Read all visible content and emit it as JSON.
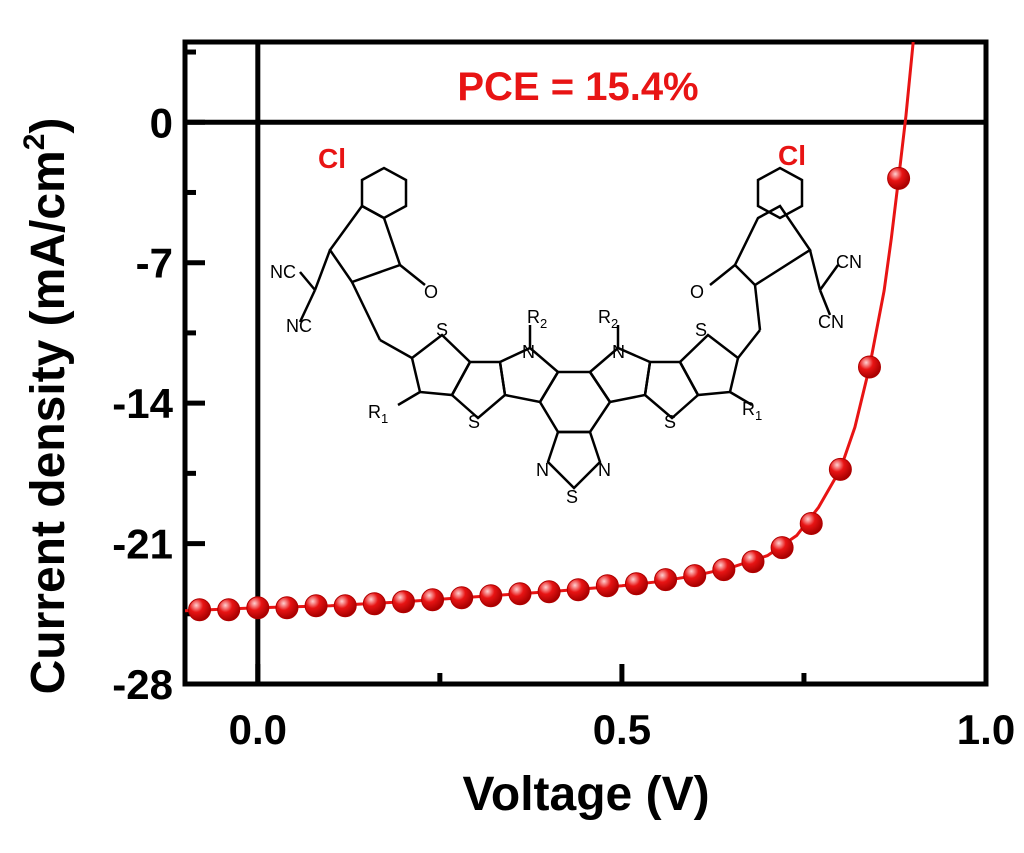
{
  "chart_data": {
    "type": "line",
    "title": "",
    "xlabel": "Voltage (V)",
    "ylabel": "Current density (mA/cm2)",
    "ylabel_main": "Current density (mA/cm",
    "ylabel_sup": "2",
    "ylabel_close": ")",
    "xlim": [
      -0.1,
      1.0
    ],
    "ylim": [
      -28,
      4
    ],
    "xticks": [
      0.0,
      0.5,
      1.0
    ],
    "xtick_labels": [
      "0.0",
      "0.5",
      "1.0"
    ],
    "xminor": [
      0.25,
      0.75
    ],
    "yticks": [
      0,
      -7,
      -14,
      -21,
      -28
    ],
    "ytick_labels": [
      "0",
      "-7",
      "-14",
      "-21",
      "-28"
    ],
    "grid": false,
    "annotation": "PCE = 15.4%",
    "series": [
      {
        "color": "#e81414",
        "x": [
          -0.08,
          -0.04,
          0.0,
          0.04,
          0.08,
          0.12,
          0.16,
          0.2,
          0.24,
          0.28,
          0.32,
          0.36,
          0.4,
          0.44,
          0.48,
          0.52,
          0.56,
          0.6,
          0.64,
          0.68,
          0.72,
          0.76,
          0.8,
          0.84,
          0.88
        ],
        "y": [
          -24.3,
          -24.3,
          -24.2,
          -24.2,
          -24.1,
          -24.1,
          -24.0,
          -23.9,
          -23.8,
          -23.7,
          -23.6,
          -23.5,
          -23.4,
          -23.3,
          -23.1,
          -23.0,
          -22.8,
          -22.6,
          -22.3,
          -21.9,
          -21.2,
          -20.0,
          -17.3,
          -12.2,
          -2.8
        ],
        "curve_x": [
          -0.1,
          0.0,
          0.1,
          0.2,
          0.3,
          0.4,
          0.5,
          0.55,
          0.6,
          0.65,
          0.7,
          0.74,
          0.77,
          0.8,
          0.82,
          0.84,
          0.86,
          0.87,
          0.88,
          0.89,
          0.9
        ],
        "curve_y": [
          -24.35,
          -24.2,
          -24.1,
          -23.9,
          -23.65,
          -23.4,
          -23.1,
          -22.9,
          -22.6,
          -22.2,
          -21.6,
          -20.6,
          -19.2,
          -17.3,
          -15.2,
          -12.2,
          -8.4,
          -5.8,
          -2.8,
          0.3,
          4.0
        ]
      }
    ]
  },
  "structure": {
    "cl_label": "Cl",
    "nc_label": "NC",
    "cn_label": "CN",
    "o_label": "O",
    "s_label": "S",
    "n_label": "N",
    "r1_label": "R",
    "r1_sub": "1",
    "r2_label": "R",
    "r2_sub": "2",
    "highlight_color": "#e81414"
  }
}
